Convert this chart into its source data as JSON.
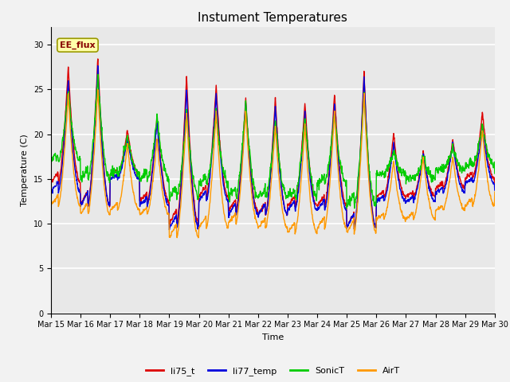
{
  "title": "Instument Temperatures",
  "xlabel": "Time",
  "ylabel": "Temperature (C)",
  "ylim": [
    0,
    32
  ],
  "yticks": [
    0,
    5,
    10,
    15,
    20,
    25,
    30
  ],
  "xlim": [
    0,
    360
  ],
  "x_tick_positions": [
    0,
    24,
    48,
    72,
    96,
    120,
    144,
    168,
    192,
    216,
    240,
    264,
    288,
    312,
    336,
    360
  ],
  "x_tick_labels": [
    "Mar 15",
    "Mar 16",
    "Mar 17",
    "Mar 18",
    "Mar 19",
    "Mar 20",
    "Mar 21",
    "Mar 22",
    "Mar 23",
    "Mar 24",
    "Mar 25",
    "Mar 26",
    "Mar 27",
    "Mar 28",
    "Mar 29",
    "Mar 30"
  ],
  "annotation_text": "EE_flux",
  "colors": {
    "li75_t": "#dd0000",
    "li77_temp": "#0000dd",
    "SonicT": "#00cc00",
    "AirT": "#ff9900"
  },
  "background_color": "#e8e8e8",
  "grid_color": "#ffffff",
  "title_fontsize": 11,
  "axis_fontsize": 8,
  "tick_fontsize": 7,
  "fig_background": "#f2f2f2"
}
